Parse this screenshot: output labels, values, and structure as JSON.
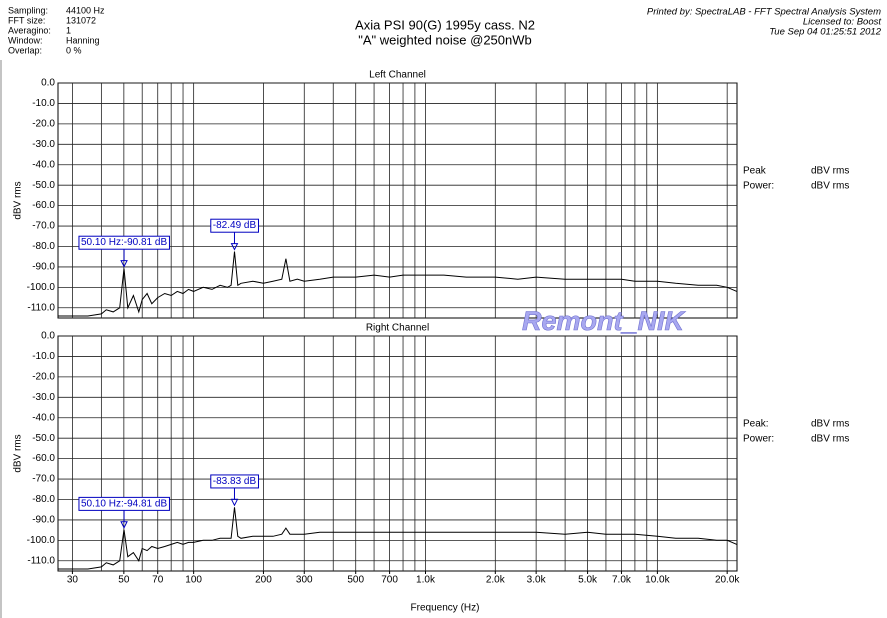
{
  "header": {
    "info": [
      {
        "label": "Sampling:",
        "value": "44100 Hz"
      },
      {
        "label": "FFT size:",
        "value": "131072"
      },
      {
        "label": "Averagino:",
        "value": "1"
      },
      {
        "label": "Window:",
        "value": "Hanning"
      },
      {
        "label": "Overlap:",
        "value": "0 %"
      }
    ],
    "title": [
      "Axia PSI 90(G) 1995y cass. N2",
      "\"A\" weighted noise @250nWb"
    ],
    "printed": [
      "Printed by: SpectraLAB - FFT Spectral Analysis System",
      "Licensed to: Boost",
      "Tue Sep 04 01:25:51 2012"
    ]
  },
  "watermark": "Remont_NIK",
  "x_label": "Frequency (Hz)",
  "chart_data": [
    {
      "type": "line",
      "title": "Left Channel",
      "y_label": "dBV rms",
      "x_log": true,
      "grid": true,
      "xlim": [
        26,
        22050
      ],
      "ylim": [
        -115,
        0
      ],
      "xgrid": [
        30,
        40,
        50,
        60,
        70,
        80,
        90,
        100,
        200,
        300,
        400,
        500,
        600,
        700,
        800,
        900,
        1000,
        2000,
        3000,
        4000,
        5000,
        6000,
        7000,
        8000,
        9000,
        10000,
        20000
      ],
      "yticks": [
        {
          "value": 0,
          "label": "0.0"
        },
        {
          "value": -10,
          "label": "-10.0"
        },
        {
          "value": -20,
          "label": "-20.0"
        },
        {
          "value": -30,
          "label": "-30.0"
        },
        {
          "value": -40,
          "label": "-40.0"
        },
        {
          "value": -50,
          "label": "-50.0"
        },
        {
          "value": -60,
          "label": "-60.0"
        },
        {
          "value": -70,
          "label": "-70.0"
        },
        {
          "value": -80,
          "label": "-80.0"
        },
        {
          "value": -90,
          "label": "-90.0"
        },
        {
          "value": -100,
          "label": "-100.0"
        },
        {
          "value": -110,
          "label": "-110.0"
        }
      ],
      "color": "#000000",
      "x": [
        26,
        30,
        35,
        40,
        42,
        45,
        48,
        50.1,
        52,
        55,
        58,
        60,
        63,
        66,
        70,
        75,
        80,
        85,
        90,
        95,
        100,
        110,
        120,
        130,
        140,
        145,
        150,
        155,
        160,
        180,
        200,
        220,
        240,
        250,
        260,
        280,
        300,
        350,
        400,
        500,
        600,
        700,
        800,
        1000,
        1200,
        1500,
        2000,
        2500,
        3000,
        4000,
        5000,
        6000,
        7000,
        8000,
        10000,
        12000,
        15000,
        18000,
        20000,
        22000
      ],
      "values": [
        -114,
        -114,
        -114,
        -113,
        -111,
        -112,
        -110,
        -90.81,
        -110,
        -104,
        -112,
        -106,
        -103,
        -108,
        -105,
        -103,
        -104,
        -102,
        -103,
        -101,
        -102,
        -100,
        -101,
        -99,
        -100,
        -99,
        -82.49,
        -99,
        -98,
        -97,
        -98,
        -97,
        -96,
        -86,
        -97,
        -96,
        -97,
        -96,
        -95,
        -95,
        -94,
        -95,
        -94,
        -94,
        -94,
        -95,
        -95,
        -96,
        -95,
        -96,
        -96,
        -96,
        -96,
        -97,
        -97,
        -98,
        -99,
        -99,
        -100,
        -102
      ],
      "annotations": [
        {
          "x": 50.1,
          "y": -90.81,
          "label": "50.10 Hz:-90.81 dB"
        },
        {
          "x": 150,
          "y": -82.49,
          "label": "-82.49 dB"
        }
      ],
      "readout": {
        "peak_label": "Peak",
        "power_label": "Power:",
        "unit": "dBV rms"
      }
    },
    {
      "type": "line",
      "title": "Right Channel",
      "y_label": "dBV rms",
      "x_log": true,
      "grid": true,
      "xlim": [
        26,
        22050
      ],
      "ylim": [
        -115,
        0
      ],
      "xgrid": [
        30,
        40,
        50,
        60,
        70,
        80,
        90,
        100,
        200,
        300,
        400,
        500,
        600,
        700,
        800,
        900,
        1000,
        2000,
        3000,
        4000,
        5000,
        6000,
        7000,
        8000,
        9000,
        10000,
        20000
      ],
      "xticks": [
        30,
        50,
        70,
        100,
        200,
        300,
        500,
        700,
        {
          "value": 1000,
          "label": "1.0k"
        },
        {
          "value": 2000,
          "label": "2.0k"
        },
        {
          "value": 3000,
          "label": "3.0k"
        },
        {
          "value": 5000,
          "label": "5.0k"
        },
        {
          "value": 7000,
          "label": "7.0k"
        },
        {
          "value": 10000,
          "label": "10.0k"
        },
        {
          "value": 20000,
          "label": "20.0k"
        }
      ],
      "yticks": [
        {
          "value": 0,
          "label": "0.0"
        },
        {
          "value": -10,
          "label": "-10.0"
        },
        {
          "value": -20,
          "label": "-20.0"
        },
        {
          "value": -30,
          "label": "-30.0"
        },
        {
          "value": -40,
          "label": "-40.0"
        },
        {
          "value": -50,
          "label": "-50.0"
        },
        {
          "value": -60,
          "label": "-60.0"
        },
        {
          "value": -70,
          "label": "-70.0"
        },
        {
          "value": -80,
          "label": "-80.0"
        },
        {
          "value": -90,
          "label": "-90.0"
        },
        {
          "value": -100,
          "label": "-100.0"
        },
        {
          "value": -110,
          "label": "-110.0"
        }
      ],
      "color": "#000000",
      "x": [
        26,
        30,
        35,
        40,
        42,
        45,
        48,
        50.1,
        52,
        55,
        58,
        60,
        63,
        66,
        70,
        75,
        80,
        85,
        90,
        95,
        100,
        110,
        120,
        130,
        140,
        145,
        150,
        155,
        160,
        180,
        200,
        220,
        240,
        250,
        260,
        280,
        300,
        350,
        400,
        500,
        600,
        700,
        800,
        1000,
        1200,
        1500,
        2000,
        2500,
        3000,
        4000,
        5000,
        6000,
        7000,
        8000,
        10000,
        12000,
        15000,
        18000,
        20000,
        22000
      ],
      "values": [
        -114,
        -114,
        -114,
        -113,
        -111,
        -112,
        -110,
        -94.81,
        -108,
        -106,
        -110,
        -104,
        -105,
        -103,
        -104,
        -103,
        -102,
        -101,
        -102,
        -101,
        -101,
        -100,
        -100,
        -99,
        -99,
        -99,
        -83.83,
        -98,
        -99,
        -98,
        -98,
        -98,
        -97,
        -94,
        -97,
        -97,
        -97,
        -96,
        -96,
        -96,
        -96,
        -96,
        -96,
        -96,
        -96,
        -96,
        -96,
        -96,
        -96,
        -97,
        -96,
        -97,
        -97,
        -97,
        -98,
        -99,
        -99,
        -100,
        -100,
        -102
      ],
      "annotations": [
        {
          "x": 50.1,
          "y": -94.81,
          "label": "50.10 Hz:-94.81 dB"
        },
        {
          "x": 150,
          "y": -83.83,
          "label": "-83.83 dB"
        }
      ],
      "readout": {
        "peak_label": "Peak:",
        "power_label": "Power:",
        "unit": "dBV rms"
      }
    }
  ]
}
